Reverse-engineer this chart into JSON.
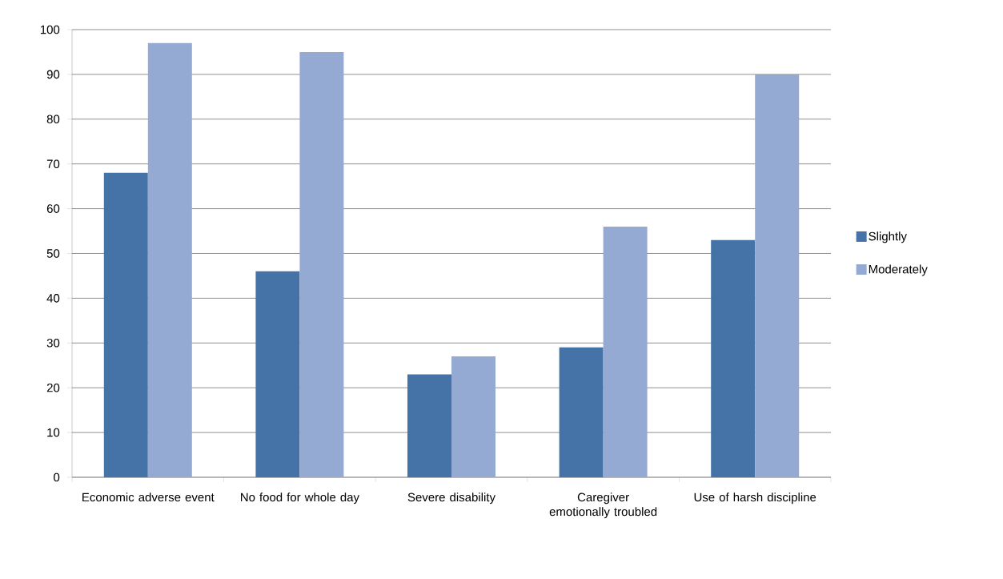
{
  "chart_data": {
    "type": "bar",
    "categories": [
      "Economic adverse event",
      "No food for whole day",
      "Severe disability",
      "Caregiver emotionally troubled",
      "Use of harsh discipline"
    ],
    "series": [
      {
        "name": "Slightly",
        "color": "#4572a7",
        "values": [
          68,
          46,
          23,
          29,
          53
        ]
      },
      {
        "name": "Moderately",
        "color": "#95aad3",
        "values": [
          97,
          95,
          27,
          56,
          90
        ]
      }
    ],
    "ylim": [
      0,
      100
    ],
    "yticks": [
      0,
      10,
      20,
      30,
      40,
      50,
      60,
      70,
      80,
      90,
      100
    ],
    "grid": "y",
    "legend": "right"
  }
}
